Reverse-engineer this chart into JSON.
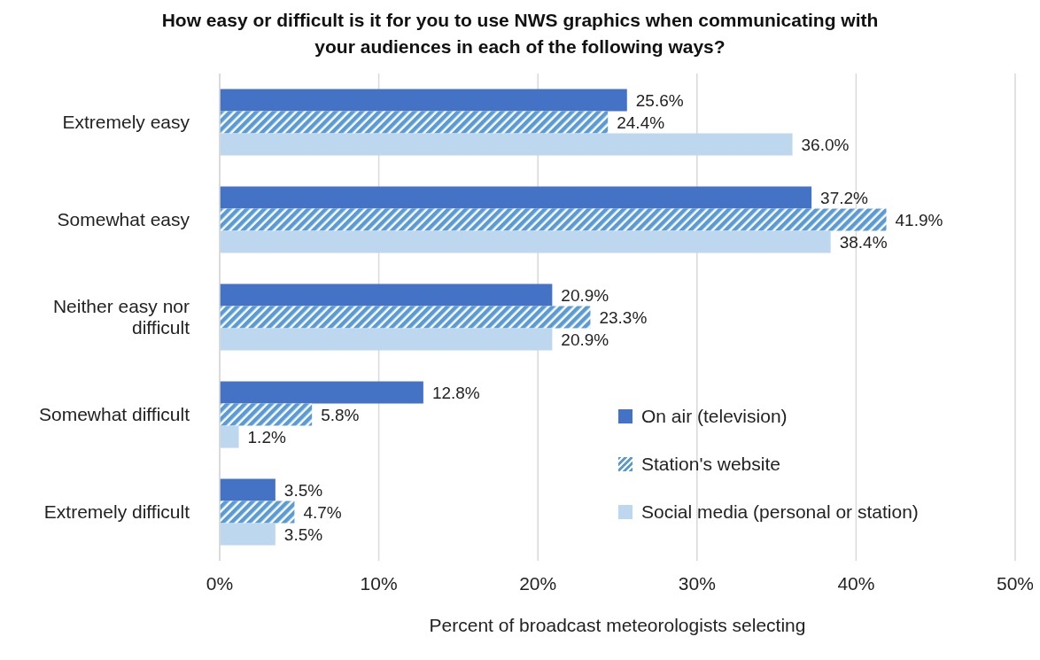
{
  "chart_data": {
    "type": "bar",
    "orientation": "horizontal",
    "title": "How easy or difficult is it for you to use NWS graphics when communicating with your audiences in each of the following ways?",
    "xlabel": "Percent of broadcast meteorologists selecting",
    "categories": [
      "Extremely easy",
      "Somewhat easy",
      "Neither easy nor difficult",
      "Somewhat difficult",
      "Extremely difficult"
    ],
    "series": [
      {
        "name": "On air (television)",
        "color": "#4472c4",
        "values": [
          25.6,
          37.2,
          20.9,
          12.8,
          3.5
        ],
        "value_labels": [
          "25.6%",
          "37.2%",
          "20.9%",
          "12.8%",
          "3.5%"
        ]
      },
      {
        "name": "Station's website",
        "color": "#5b9bd5",
        "values": [
          24.4,
          41.9,
          23.3,
          5.8,
          4.7
        ],
        "value_labels": [
          "24.4%",
          "41.9%",
          "23.3%",
          "5.8%",
          "4.7%"
        ]
      },
      {
        "name": "Social media (personal or station)",
        "color": "#bdd7ee",
        "values": [
          36.0,
          38.4,
          20.9,
          1.2,
          3.5
        ],
        "value_labels": [
          "36.0%",
          "38.4%",
          "20.9%",
          "1.2%",
          "3.5%"
        ]
      }
    ],
    "xlim": [
      0,
      50
    ],
    "xticks": [
      {
        "value": 0,
        "label": "0%"
      },
      {
        "value": 10,
        "label": "10%"
      },
      {
        "value": 20,
        "label": "20%"
      },
      {
        "value": 30,
        "label": "30%"
      },
      {
        "value": 40,
        "label": "40%"
      },
      {
        "value": 50,
        "label": "50%"
      }
    ],
    "grid": "x",
    "legend": "bottom right"
  }
}
